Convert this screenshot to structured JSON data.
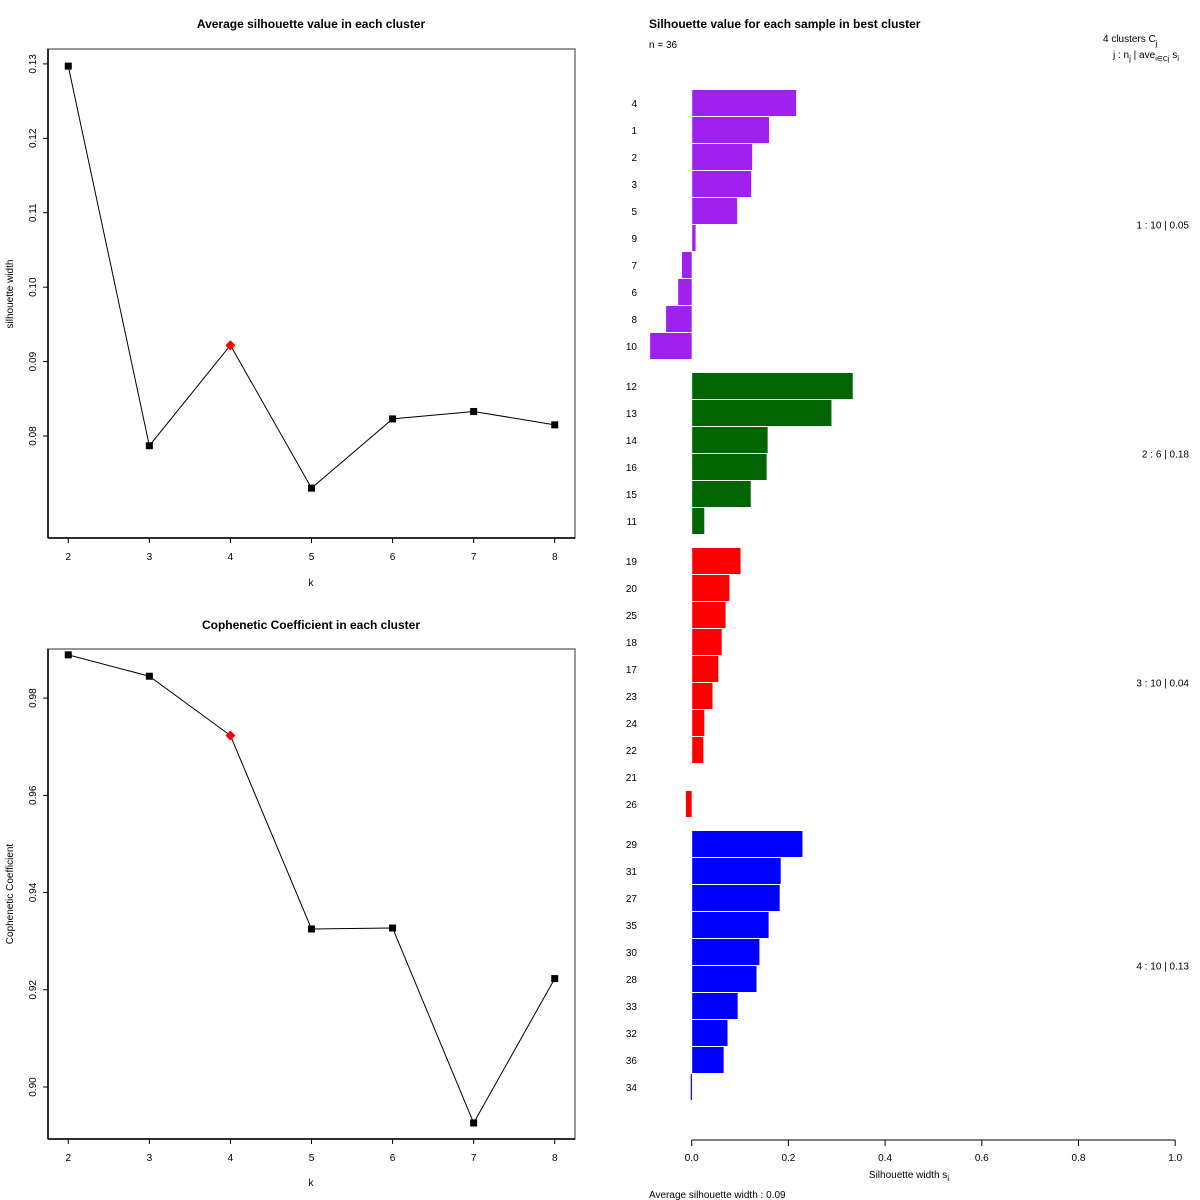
{
  "chart_data": [
    {
      "type": "line",
      "title": "Average silhouette value in each cluster",
      "xlabel": "k",
      "ylabel": "silhouette width",
      "x": [
        2,
        3,
        4,
        5,
        6,
        7,
        8
      ],
      "values": [
        0.1297,
        0.0787,
        0.0922,
        0.073,
        0.0823,
        0.0833,
        0.0815
      ],
      "highlight_x": 4,
      "highlight_color": "#ff0000",
      "point_color": "#000000",
      "xticks": [
        "2",
        "3",
        "4",
        "5",
        "6",
        "7",
        "8"
      ],
      "yticks": [
        0.08,
        0.09,
        0.1,
        0.11,
        0.12,
        0.13
      ],
      "ytick_labels": [
        "0.08",
        "0.09",
        "0.10",
        "0.11",
        "0.12",
        "0.13"
      ],
      "xlim": [
        1.75,
        8.25
      ],
      "ylim": [
        0.0663,
        0.132
      ],
      "grid": false
    },
    {
      "type": "line",
      "title": "Cophenetic Coefficient in each cluster",
      "xlabel": "k",
      "ylabel": "Cophenetic Coefficient",
      "x": [
        2,
        3,
        4,
        5,
        6,
        7,
        8
      ],
      "values": [
        0.9889,
        0.9845,
        0.9723,
        0.9325,
        0.9327,
        0.8926,
        0.9223
      ],
      "highlight_x": 4,
      "highlight_color": "#ff0000",
      "point_color": "#000000",
      "xticks": [
        "2",
        "3",
        "4",
        "5",
        "6",
        "7",
        "8"
      ],
      "yticks": [
        0.9,
        0.92,
        0.94,
        0.96,
        0.98
      ],
      "ytick_labels": [
        "0.90",
        "0.92",
        "0.94",
        "0.96",
        "0.98"
      ],
      "xlim": [
        1.75,
        8.25
      ],
      "ylim": [
        0.8893,
        0.9901
      ],
      "grid": false
    },
    {
      "type": "bar",
      "orientation": "horizontal",
      "title": "Silhouette value for each sample in best cluster",
      "subtitle": "n = 36",
      "xlabel": "Silhouette width s",
      "xlabel_sub": "i",
      "xlim": [
        0.0,
        1.0
      ],
      "xticks": [
        "0.0",
        "0.2",
        "0.4",
        "0.6",
        "0.8",
        "1.0"
      ],
      "xtick_values": [
        0.0,
        0.2,
        0.4,
        0.6,
        0.8,
        1.0
      ],
      "legend_header": {
        "line1_prefix": "4  clusters  C",
        "line1_sub": "j",
        "line2_prefix": "j :  n",
        "line2_sub": "j",
        "line2_mid": " | ave",
        "line2_sub2": "i∈Cj",
        "line2_suffix": " s",
        "line2_sub3": "i"
      },
      "footer": "Average silhouette width :  0.09",
      "clusters": [
        {
          "id": 1,
          "color": "#a020f0",
          "summary": "1 :   10  |  0.05",
          "samples": [
            "4",
            "1",
            "2",
            "3",
            "5",
            "9",
            "7",
            "6",
            "8",
            "10"
          ],
          "values": [
            0.215,
            0.159,
            0.124,
            0.122,
            0.093,
            0.007,
            -0.02,
            -0.028,
            -0.053,
            -0.086
          ]
        },
        {
          "id": 2,
          "color": "#006400",
          "summary": "2 :   6  |  0.18",
          "samples": [
            "12",
            "13",
            "14",
            "16",
            "15",
            "11"
          ],
          "values": [
            0.332,
            0.288,
            0.156,
            0.154,
            0.121,
            0.025
          ]
        },
        {
          "id": 3,
          "color": "#ff0000",
          "summary": "3 :   10  |  0.04",
          "samples": [
            "19",
            "20",
            "25",
            "18",
            "17",
            "23",
            "24",
            "22",
            "21",
            "26"
          ],
          "values": [
            0.1,
            0.077,
            0.069,
            0.061,
            0.054,
            0.042,
            0.025,
            0.023,
            0.0,
            -0.012
          ]
        },
        {
          "id": 4,
          "color": "#0000ff",
          "summary": "4 :   10  |  0.13",
          "samples": [
            "29",
            "31",
            "27",
            "35",
            "30",
            "28",
            "33",
            "32",
            "36",
            "34"
          ],
          "values": [
            0.228,
            0.183,
            0.181,
            0.158,
            0.139,
            0.133,
            0.094,
            0.073,
            0.065,
            -0.002
          ]
        }
      ]
    }
  ]
}
